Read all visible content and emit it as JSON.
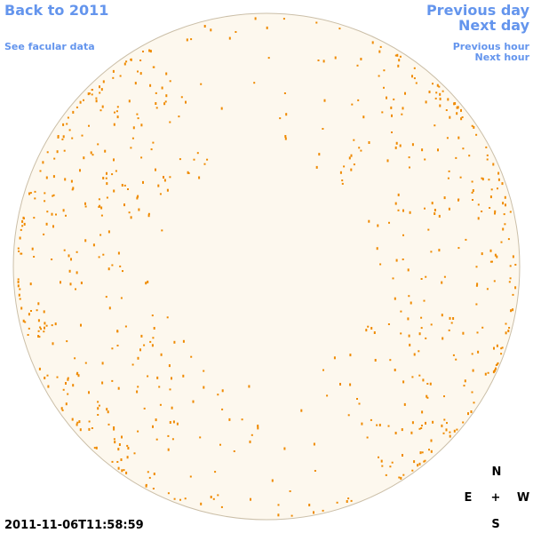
{
  "links": {
    "back_year": "Back to 2011",
    "facular": "See facular data",
    "prev_day": "Previous day",
    "next_day": "Next day",
    "prev_hour": "Previous hour",
    "next_hour": "Next hour"
  },
  "timestamp": "2011-11-06T11:58:59",
  "compass": {
    "north": "N",
    "east": "E",
    "center": "+",
    "west": "W",
    "south": "S"
  }
}
